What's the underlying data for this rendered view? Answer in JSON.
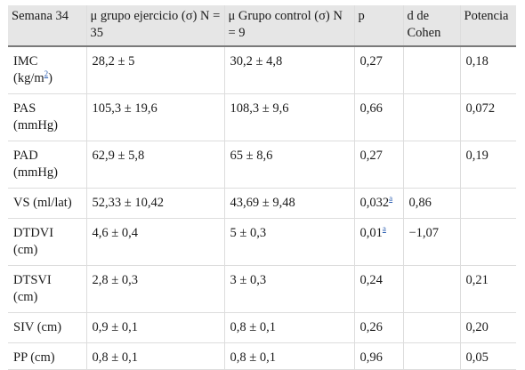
{
  "table": {
    "headers": [
      "Semana 34",
      "μ grupo ejercicio (σ) N = 35",
      "μ Grupo control (σ) N = 9",
      "p",
      "d de Cohen",
      "Potencia"
    ],
    "rows": [
      {
        "label_main": "IMC",
        "label_line2_pre": "(kg/m",
        "label_sup": "2",
        "label_line2_post": ")",
        "ejercicio": "28,2 ± 5",
        "control": "30,2 ± 4,8",
        "p": "0,27",
        "p_mark": "",
        "cohen": "",
        "potencia": "0,18"
      },
      {
        "label_main": "PAS",
        "label_line2_pre": "(mmHg)",
        "label_sup": "",
        "label_line2_post": "",
        "ejercicio": "105,3 ± 19,6",
        "control": "108,3 ± 9,6",
        "p": "0,66",
        "p_mark": "",
        "cohen": "",
        "potencia": "0,072"
      },
      {
        "label_main": "PAD",
        "label_line2_pre": "(mmHg)",
        "label_sup": "",
        "label_line2_post": "",
        "ejercicio": "62,9 ± 5,8",
        "control": "65 ± 8,6",
        "p": "0,27",
        "p_mark": "",
        "cohen": "",
        "potencia": "0,19"
      },
      {
        "label_main": "VS (ml/lat)",
        "label_line2_pre": "",
        "label_sup": "",
        "label_line2_post": "",
        "ejercicio": "52,33 ± 10,42",
        "control": "43,69 ± 9,48",
        "p": "0,032",
        "p_mark": "a",
        "cohen": "0,86",
        "potencia": ""
      },
      {
        "label_main": "DTDVI",
        "label_line2_pre": "(cm)",
        "label_sup": "",
        "label_line2_post": "",
        "ejercicio": "4,6 ± 0,4",
        "control": "5 ± 0,3",
        "p": "0,01",
        "p_mark": "a",
        "cohen": "−1,07",
        "potencia": ""
      },
      {
        "label_main": "DTSVI",
        "label_line2_pre": "(cm)",
        "label_sup": "",
        "label_line2_post": "",
        "ejercicio": "2,8 ± 0,3",
        "control": "3 ± 0,3",
        "p": "0,24",
        "p_mark": "",
        "cohen": "",
        "potencia": "0,21"
      },
      {
        "label_main": "SIV (cm)",
        "label_line2_pre": "",
        "label_sup": "",
        "label_line2_post": "",
        "ejercicio": "0,9 ± 0,1",
        "control": "0,8 ± 0,1",
        "p": "0,26",
        "p_mark": "",
        "cohen": "",
        "potencia": "0,20"
      },
      {
        "label_main": "PP (cm)",
        "label_line2_pre": "",
        "label_sup": "",
        "label_line2_post": "",
        "ejercicio": "0,8 ± 0,1",
        "control": "0,8 ± 0,1",
        "p": "0,96",
        "p_mark": "",
        "cohen": "",
        "potencia": "0,05"
      }
    ]
  }
}
